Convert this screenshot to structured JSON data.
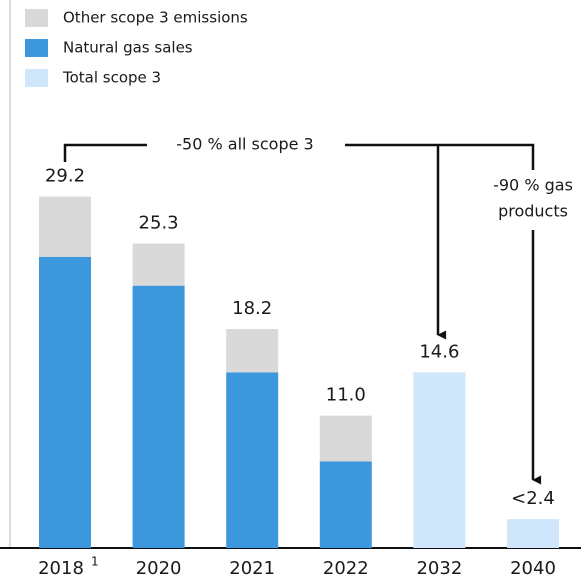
{
  "chart_data": {
    "type": "stacked_bar",
    "categories": [
      "2018",
      "2020",
      "2021",
      "2022",
      "2032",
      "2040"
    ],
    "category_superscripts": [
      "1",
      null,
      null,
      null,
      null,
      null
    ],
    "series": [
      {
        "name": "Other scope 3 emissions",
        "color": "#d9d9d9",
        "values": [
          5.0,
          3.5,
          3.6,
          3.8,
          null,
          null
        ]
      },
      {
        "name": "Natural gas sales",
        "color": "#3d97dc",
        "values": [
          24.2,
          21.8,
          14.6,
          7.2,
          null,
          null
        ]
      },
      {
        "name": "Total scope 3",
        "color": "#cfe6fb",
        "values": [
          null,
          null,
          null,
          null,
          14.6,
          2.4
        ]
      }
    ],
    "stack_order": [
      1,
      0,
      2
    ],
    "total_labels": [
      "29.2",
      "25.3",
      "18.2",
      "11.0",
      "14.6",
      "<2.4"
    ],
    "annotations": [
      {
        "lines": [
          "-50 % all scope 3"
        ]
      },
      {
        "lines": [
          "-90 % gas",
          "products"
        ]
      }
    ],
    "ylim": [
      0,
      30
    ]
  }
}
